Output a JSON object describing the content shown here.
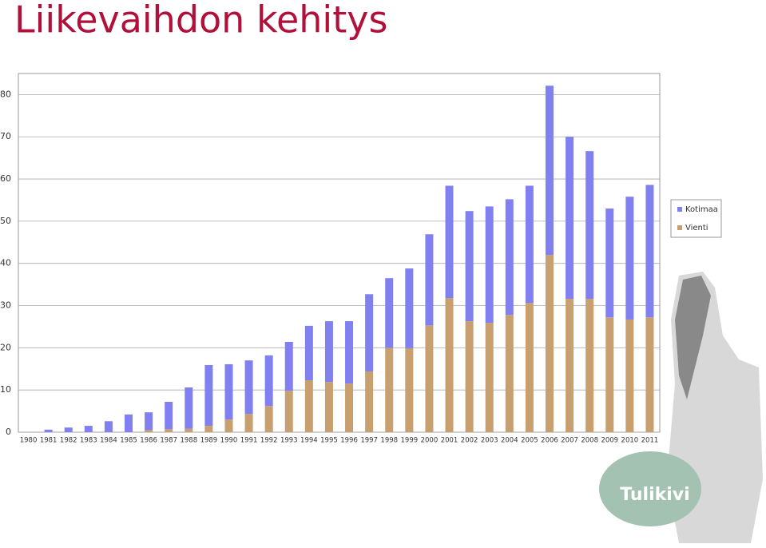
{
  "chart_data": {
    "type": "bar",
    "stacked": true,
    "title": "Liikevaihdon kehitys",
    "categories": [
      "1980",
      "1981",
      "1982",
      "1983",
      "1984",
      "1985",
      "1986",
      "1987",
      "1988",
      "1989",
      "1990",
      "1991",
      "1992",
      "1993",
      "1994",
      "1995",
      "1996",
      "1997",
      "1998",
      "1999",
      "2000",
      "2001",
      "2002",
      "2003",
      "2004",
      "2005",
      "2006",
      "2007",
      "2008",
      "2009",
      "2010",
      "2011"
    ],
    "series": [
      {
        "name": "Kotimaa",
        "color": "#8080f0",
        "values": [
          0,
          0.6,
          1.1,
          1.5,
          2.6,
          4.2,
          4.2,
          6.5,
          9.8,
          14.4,
          13.1,
          12.7,
          12.0,
          11.6,
          12.9,
          14.4,
          14.8,
          18.3,
          16.5,
          18.9,
          21.6,
          26.6,
          26.1,
          27.6,
          27.4,
          27.8,
          40.1,
          38.4,
          35.0,
          25.8,
          29.1,
          31.4
        ]
      },
      {
        "name": "Vienti",
        "color": "#c8a070",
        "values": [
          0,
          0,
          0,
          0,
          0,
          0,
          0.5,
          0.7,
          0.8,
          1.5,
          3.0,
          4.3,
          6.2,
          9.8,
          12.3,
          11.9,
          11.5,
          14.4,
          20.0,
          19.9,
          25.3,
          31.8,
          26.3,
          25.9,
          27.8,
          30.6,
          42.0,
          31.6,
          31.6,
          27.2,
          26.7,
          27.2
        ]
      }
    ],
    "ylim": [
      0,
      85
    ],
    "yticks": [
      0,
      10,
      20,
      30,
      40,
      50,
      60,
      70,
      80
    ],
    "grid": true,
    "legend": "right"
  },
  "logo": "Tulikivi"
}
